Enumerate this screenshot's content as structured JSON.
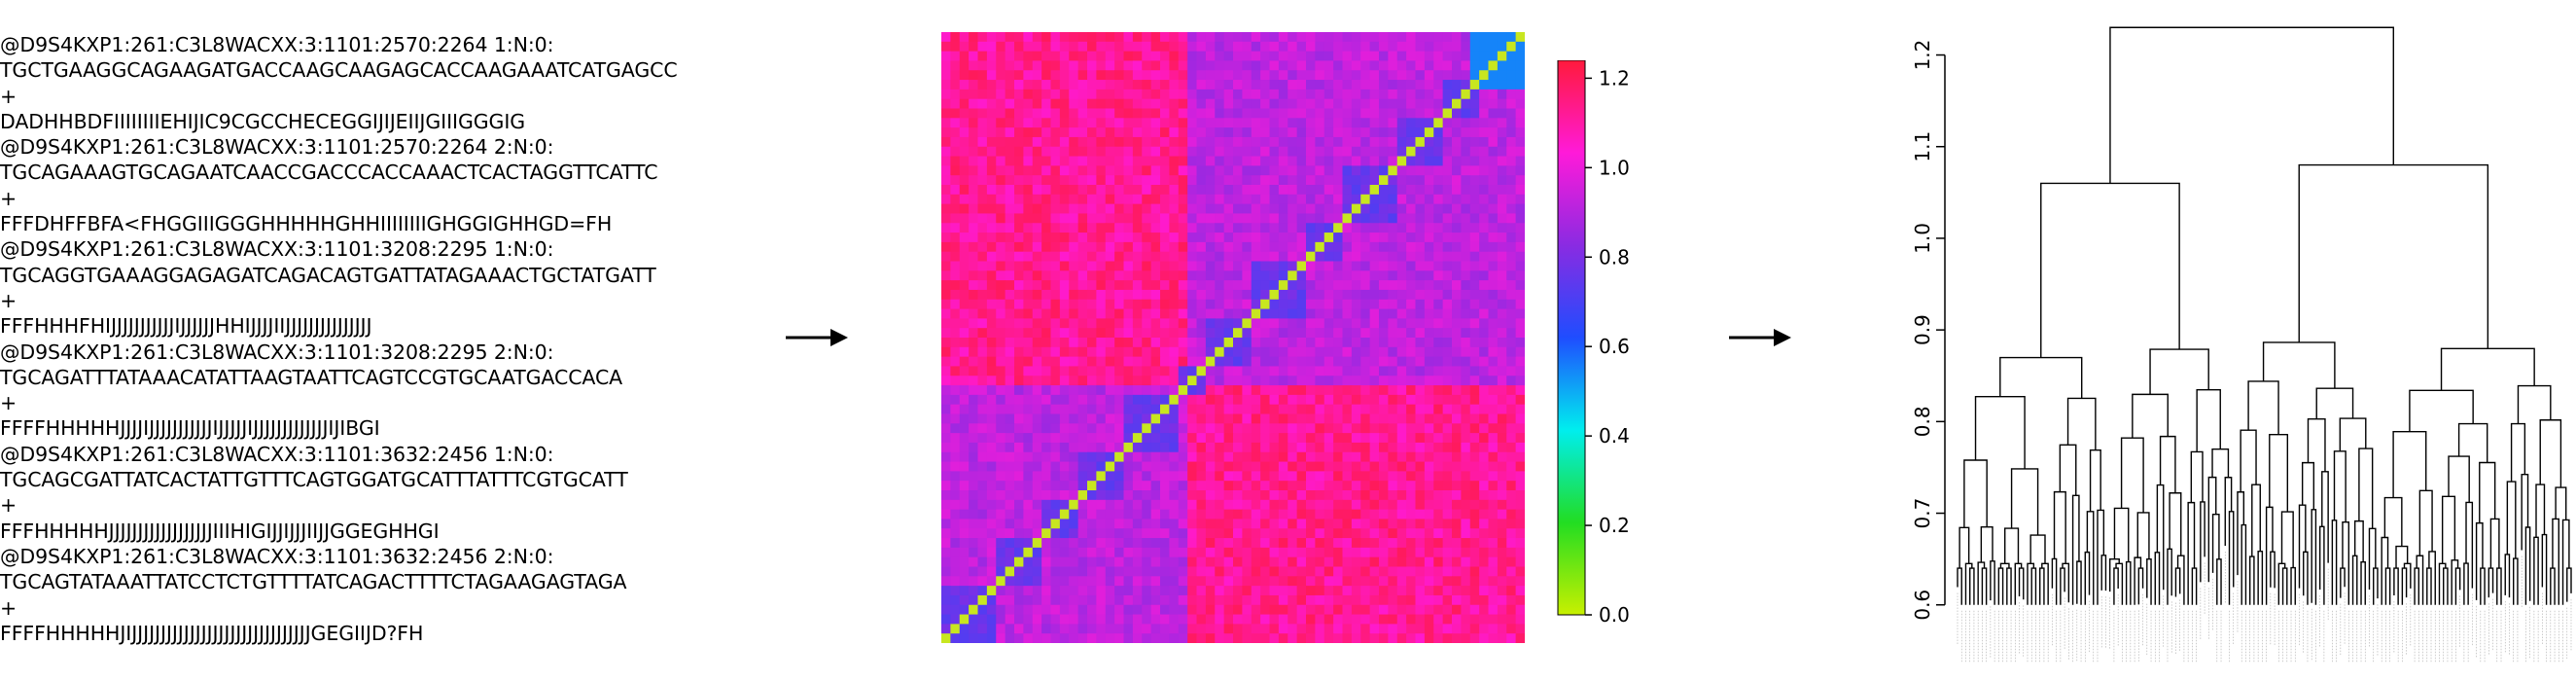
{
  "fastq_lines": [
    "@D9S4KXP1:261:C3L8WACXX:3:1101:2570:2264 1:N:0:",
    "TGCTGAAGGCAGAAGATGACCAAGCAAGAGCACCAAGAAATCATGAGCC",
    "+",
    "DADHHBDFIIIIIIIIEHIJIC9CGCCHECEGGIJIJEIIJGIIIGGGIG",
    "@D9S4KXP1:261:C3L8WACXX:3:1101:2570:2264 2:N:0:",
    "TGCAGAAAGTGCAGAATCAACCGACCCACCAAACTCACTAGGTTCATTC",
    "+",
    "FFFDHFFBFA<FHGGIIIGGGHHHHHGHHIIIIIIIIGHGGIGHHGD=FH",
    "@D9S4KXP1:261:C3L8WACXX:3:1101:3208:2295 1:N:0:",
    "TGCAGGTGAAAGGAGAGATCAGACAGTGATTATAGAAACTGCTATGATT",
    "+",
    "FFFHHHFHIJJJJJJJJJJJIJJJJJJHHIJJJJIIJJJJJJJJJJJJJJJ",
    "@D9S4KXP1:261:C3L8WACXX:3:1101:3208:2295 2:N:0:",
    "TGCAGATTTATAAACATATTAAGTAATTCAGTCCGTGCAATGACCACA",
    "+",
    "FFFFHHHHHJJJJIJJJJJJJJJJJIJJJJJIJJJJJJJJJJJJJIJIBGI",
    "@D9S4KXP1:261:C3L8WACXX:3:1101:3632:2456 1:N:0:",
    "TGCAGCGATTATCACTATTGTTTCAGTGGATGCATTTATTTCGTGCATT",
    "+",
    "FFFHHHHHJJJJJJJJJJJJJJJJJJIIIHIGIJJIJJJIIJJGGEGHHGI",
    "@D9S4KXP1:261:C3L8WACXX:3:1101:3632:2456 2:N:0:",
    "TGCAGTATAAATTATCCTCTGTTTTATCAGACTTTTCTAGAAGAGTAGA",
    "+",
    "FFFFHHHHHJIJJJJJJJJJJJJJJJJJJJJJJJJJJJJJJJGEGIIJD?FH"
  ],
  "colorbar": {
    "ticks": [
      "0.0",
      "0.2",
      "0.4",
      "0.6",
      "0.8",
      "1.0",
      "1.2"
    ],
    "range": [
      0,
      1.24
    ],
    "colors": [
      "#c8f000",
      "#22dd22",
      "#00eeee",
      "#1f4dff",
      "#8a2be2",
      "#ff1ad9",
      "#ff1a3c"
    ]
  },
  "dendrogram": {
    "axis_ticks": [
      "0.6",
      "0.7",
      "0.8",
      "0.9",
      "1.0",
      "1.1",
      "1.2"
    ],
    "range": [
      0.57,
      1.26
    ],
    "root_height": 1.23,
    "top_split_heights": [
      1.06,
      1.08
    ]
  },
  "heatmap": {
    "n": 64,
    "diag_color": "#c8e620"
  }
}
